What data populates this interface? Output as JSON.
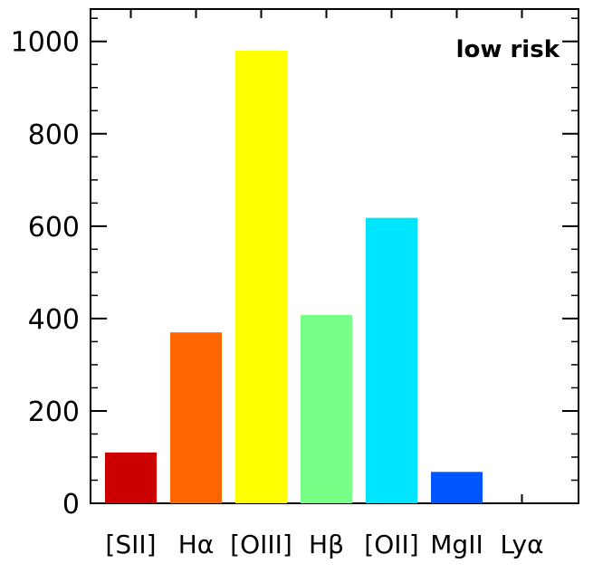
{
  "chart_data": {
    "type": "bar",
    "categories": [
      "[SII]",
      "Hα",
      "[OIII]",
      "Hβ",
      "[OII]",
      "MgII",
      "Lyα"
    ],
    "values": [
      110,
      370,
      980,
      408,
      618,
      68,
      0
    ],
    "colors": [
      "#cc0000",
      "#ff6600",
      "#ffff00",
      "#77ff88",
      "#00e5ff",
      "#0055ff",
      "#000088"
    ],
    "annotation": "low risk",
    "title": "",
    "xlabel": "",
    "ylabel": "",
    "ylim": [
      0,
      1070
    ],
    "yticks": [
      0,
      200,
      400,
      600,
      800,
      1000
    ],
    "grid": false
  }
}
